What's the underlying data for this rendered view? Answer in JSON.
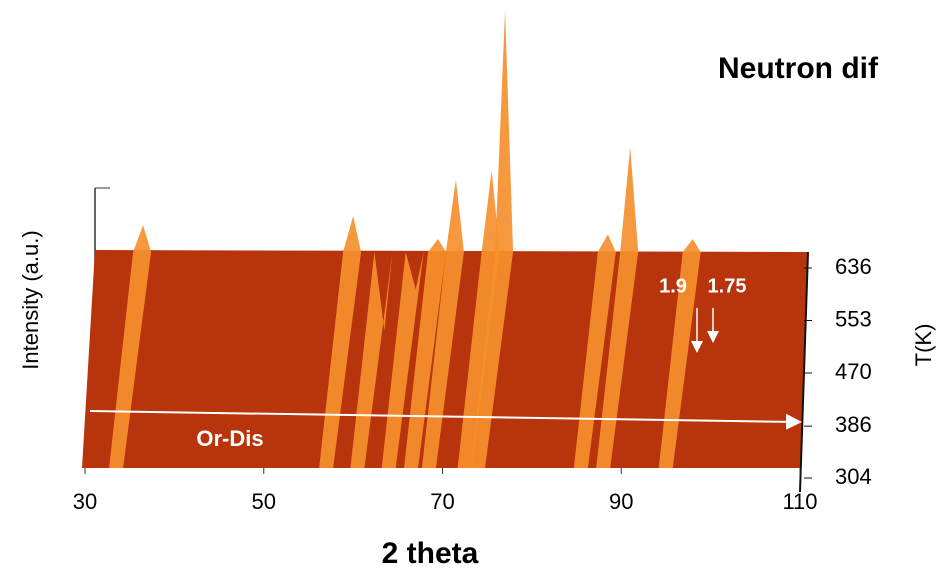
{
  "chart_data": {
    "type": "surface",
    "title": "Neutron dif",
    "x_label": "2 theta",
    "y_label": "Intensity (a.u.)",
    "z_label": "T(K)",
    "xlim": [
      30,
      110
    ],
    "xticks": [
      30,
      50,
      70,
      90,
      110
    ],
    "zlim": [
      304,
      636
    ],
    "zticks": [
      636,
      553,
      470,
      386,
      304
    ],
    "ylim": [
      0,
      100
    ],
    "x": [
      36.5,
      60,
      63.5,
      67,
      69.5,
      71.5,
      75.5,
      77,
      88.5,
      91,
      98
    ],
    "values": [
      53,
      55,
      30,
      39,
      50,
      63,
      65,
      100,
      51,
      70,
      50
    ],
    "color": "#f5902e",
    "surface_color": "#b8340c",
    "annotations": [
      "1.9",
      "1.75",
      "Or-Dis"
    ]
  }
}
